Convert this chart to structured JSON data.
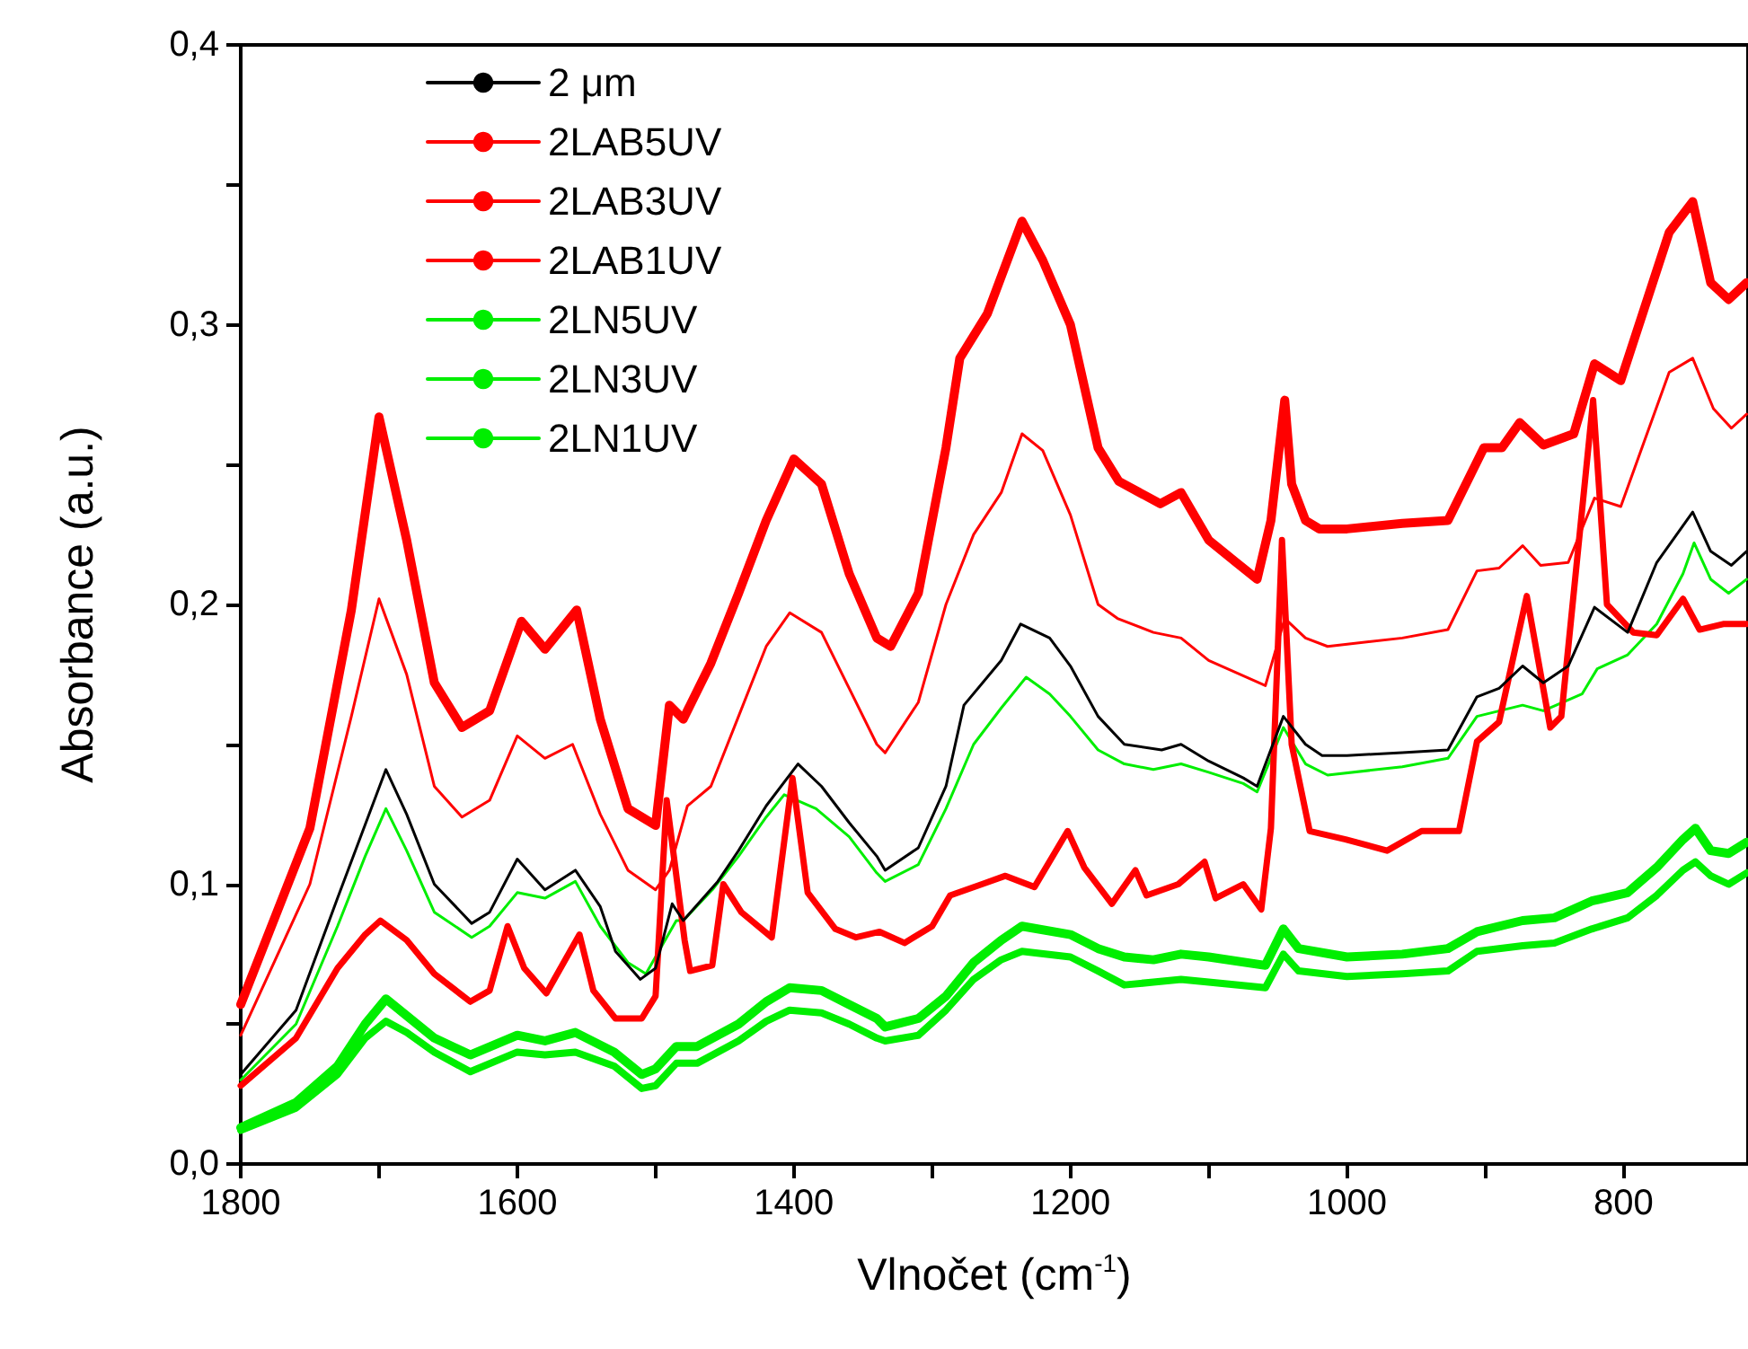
{
  "chart_data": {
    "type": "line",
    "xlabel": "Vlnočet (cm$^{-1}$)",
    "ylabel": "Absorbance (a.u.)",
    "xlim": [
      1800,
      710
    ],
    "ylim": [
      0,
      0.4
    ],
    "xticks": [
      1800,
      {
        "value": 1700,
        "label": null
      },
      1600,
      {
        "value": 1500,
        "label": null
      },
      1400,
      {
        "value": 1300,
        "label": null
      },
      1200,
      {
        "value": 1100,
        "label": null
      },
      1000,
      {
        "value": 900,
        "label": null
      },
      800
    ],
    "yticks": [
      {
        "value": 0,
        "label": "0,0"
      },
      {
        "value": 0.05,
        "label": null
      },
      {
        "value": 0.1,
        "label": "0,1"
      },
      {
        "value": 0.15,
        "label": null
      },
      {
        "value": 0.2,
        "label": "0,2"
      },
      {
        "value": 0.25,
        "label": null
      },
      {
        "value": 0.3,
        "label": "0,3"
      },
      {
        "value": 0.35,
        "label": null
      },
      {
        "value": 0.4,
        "label": "0,4"
      }
    ],
    "grid": false,
    "legend": "top left",
    "marker": "none",
    "line_style": "solid",
    "series": [
      {
        "name": "2 μm",
        "color": "#000000",
        "x": [
          1800,
          1760,
          1730,
          1695,
          1680,
          1660,
          1633,
          1620,
          1600,
          1580,
          1558,
          1540,
          1529,
          1511,
          1500,
          1488,
          1480,
          1455,
          1440,
          1420,
          1397,
          1380,
          1360,
          1340,
          1334,
          1310,
          1290,
          1277,
          1250,
          1236,
          1215,
          1200,
          1180,
          1161,
          1134,
          1120,
          1100,
          1075,
          1065,
          1046,
          1030,
          1018,
          1000,
          960,
          927,
          906,
          890,
          873,
          858,
          840,
          821,
          797,
          776,
          750,
          737,
          722,
          711
        ],
        "values": [
          0.032,
          0.055,
          0.095,
          0.141,
          0.125,
          0.1,
          0.086,
          0.09,
          0.109,
          0.098,
          0.105,
          0.092,
          0.076,
          0.066,
          0.07,
          0.093,
          0.087,
          0.101,
          0.112,
          0.128,
          0.143,
          0.135,
          0.122,
          0.11,
          0.105,
          0.113,
          0.135,
          0.164,
          0.18,
          0.193,
          0.188,
          0.178,
          0.16,
          0.15,
          0.148,
          0.15,
          0.144,
          0.138,
          0.135,
          0.16,
          0.15,
          0.146,
          0.146,
          0.147,
          0.148,
          0.167,
          0.17,
          0.178,
          0.172,
          0.178,
          0.199,
          0.19,
          0.215,
          0.233,
          0.219,
          0.214,
          0.219
        ]
      },
      {
        "name": "2LAB5UV",
        "color": "#ff0000",
        "x": [
          1800,
          1750,
          1720,
          1700,
          1680,
          1660,
          1640,
          1620,
          1597,
          1580,
          1557,
          1540,
          1520,
          1500,
          1490,
          1480,
          1460,
          1440,
          1420,
          1400,
          1380,
          1360,
          1340,
          1330,
          1310,
          1290,
          1280,
          1260,
          1235,
          1220,
          1200,
          1180,
          1165,
          1135,
          1120,
          1100,
          1080,
          1065,
          1055,
          1045,
          1040,
          1030,
          1020,
          1000,
          960,
          927,
          901,
          888,
          875,
          858,
          836,
          821,
          802,
          767,
          750,
          737,
          724,
          711
        ],
        "values": [
          0.057,
          0.12,
          0.198,
          0.267,
          0.223,
          0.172,
          0.156,
          0.162,
          0.194,
          0.184,
          0.198,
          0.159,
          0.127,
          0.121,
          0.164,
          0.159,
          0.179,
          0.204,
          0.23,
          0.252,
          0.243,
          0.211,
          0.188,
          0.185,
          0.204,
          0.256,
          0.288,
          0.304,
          0.337,
          0.323,
          0.3,
          0.256,
          0.244,
          0.236,
          0.24,
          0.223,
          0.215,
          0.209,
          0.23,
          0.273,
          0.243,
          0.23,
          0.227,
          0.227,
          0.229,
          0.23,
          0.256,
          0.256,
          0.265,
          0.257,
          0.261,
          0.286,
          0.28,
          0.333,
          0.344,
          0.315,
          0.309,
          0.315
        ]
      },
      {
        "name": "2LAB3UV",
        "color": "#ff0000",
        "x": [
          1800,
          1760,
          1730,
          1710,
          1699,
          1680,
          1660,
          1634,
          1620,
          1607,
          1595,
          1579,
          1555,
          1545,
          1529,
          1510,
          1500,
          1492,
          1479,
          1475,
          1459,
          1451,
          1438,
          1416,
          1401,
          1390,
          1370,
          1355,
          1338,
          1320,
          1300,
          1287,
          1264,
          1247,
          1226,
          1202,
          1190,
          1170,
          1153,
          1145,
          1122,
          1103,
          1095,
          1075,
          1062,
          1055,
          1047,
          1040,
          1027,
          1001,
          971,
          946,
          919,
          906,
          890,
          870,
          853,
          845,
          822,
          812,
          793,
          776,
          757,
          745,
          728,
          711
        ],
        "values": [
          0.028,
          0.045,
          0.07,
          0.082,
          0.087,
          0.08,
          0.068,
          0.058,
          0.062,
          0.085,
          0.07,
          0.061,
          0.082,
          0.062,
          0.052,
          0.052,
          0.06,
          0.13,
          0.08,
          0.069,
          0.071,
          0.1,
          0.09,
          0.081,
          0.138,
          0.097,
          0.084,
          0.081,
          0.083,
          0.079,
          0.085,
          0.096,
          0.1,
          0.103,
          0.099,
          0.119,
          0.106,
          0.093,
          0.105,
          0.096,
          0.1,
          0.108,
          0.095,
          0.1,
          0.091,
          0.12,
          0.223,
          0.15,
          0.119,
          0.116,
          0.112,
          0.119,
          0.119,
          0.151,
          0.158,
          0.203,
          0.156,
          0.16,
          0.273,
          0.2,
          0.19,
          0.189,
          0.202,
          0.191,
          0.193,
          0.193
        ]
      },
      {
        "name": "2LAB1UV",
        "color": "#ff0000",
        "x": [
          1800,
          1750,
          1720,
          1700,
          1680,
          1660,
          1640,
          1620,
          1600,
          1580,
          1560,
          1540,
          1520,
          1500,
          1490,
          1477,
          1460,
          1440,
          1420,
          1403,
          1380,
          1360,
          1340,
          1334,
          1310,
          1290,
          1270,
          1250,
          1235,
          1220,
          1200,
          1180,
          1166,
          1140,
          1120,
          1100,
          1059,
          1045,
          1030,
          1014,
          960,
          927,
          906,
          890,
          873,
          860,
          840,
          821,
          802,
          767,
          750,
          735,
          722,
          711
        ],
        "values": [
          0.046,
          0.1,
          0.16,
          0.202,
          0.175,
          0.135,
          0.124,
          0.13,
          0.153,
          0.145,
          0.15,
          0.125,
          0.105,
          0.098,
          0.105,
          0.128,
          0.135,
          0.16,
          0.185,
          0.197,
          0.19,
          0.17,
          0.15,
          0.147,
          0.165,
          0.2,
          0.225,
          0.24,
          0.261,
          0.255,
          0.232,
          0.2,
          0.195,
          0.19,
          0.188,
          0.18,
          0.171,
          0.195,
          0.188,
          0.185,
          0.188,
          0.191,
          0.212,
          0.213,
          0.221,
          0.214,
          0.215,
          0.238,
          0.235,
          0.283,
          0.288,
          0.27,
          0.263,
          0.268
        ]
      },
      {
        "name": "2LN5UV",
        "color": "#00ee00",
        "x": [
          1800,
          1760,
          1730,
          1710,
          1695,
          1680,
          1660,
          1634,
          1600,
          1580,
          1558,
          1530,
          1510,
          1500,
          1485,
          1470,
          1440,
          1420,
          1403,
          1380,
          1360,
          1340,
          1334,
          1310,
          1290,
          1270,
          1250,
          1235,
          1200,
          1180,
          1161,
          1140,
          1120,
          1100,
          1059,
          1046,
          1035,
          1000,
          960,
          927,
          906,
          873,
          850,
          823,
          797,
          776,
          757,
          748,
          737,
          724,
          711
        ],
        "values": [
          0.013,
          0.022,
          0.035,
          0.05,
          0.059,
          0.053,
          0.045,
          0.039,
          0.046,
          0.044,
          0.047,
          0.04,
          0.032,
          0.034,
          0.042,
          0.042,
          0.05,
          0.058,
          0.063,
          0.062,
          0.057,
          0.052,
          0.049,
          0.052,
          0.06,
          0.072,
          0.08,
          0.085,
          0.082,
          0.077,
          0.074,
          0.073,
          0.075,
          0.074,
          0.071,
          0.084,
          0.077,
          0.074,
          0.075,
          0.077,
          0.083,
          0.087,
          0.088,
          0.094,
          0.097,
          0.106,
          0.116,
          0.12,
          0.112,
          0.111,
          0.115
        ]
      },
      {
        "name": "2LN3UV",
        "color": "#00ee00",
        "x": [
          1800,
          1760,
          1730,
          1710,
          1695,
          1680,
          1660,
          1634,
          1600,
          1580,
          1558,
          1530,
          1510,
          1500,
          1485,
          1470,
          1440,
          1420,
          1403,
          1380,
          1360,
          1340,
          1334,
          1310,
          1290,
          1270,
          1250,
          1235,
          1200,
          1180,
          1161,
          1140,
          1120,
          1100,
          1059,
          1046,
          1035,
          1000,
          960,
          927,
          906,
          873,
          850,
          823,
          797,
          776,
          757,
          748,
          737,
          724,
          711
        ],
        "values": [
          0.012,
          0.02,
          0.032,
          0.045,
          0.051,
          0.047,
          0.04,
          0.033,
          0.04,
          0.039,
          0.04,
          0.035,
          0.027,
          0.028,
          0.036,
          0.036,
          0.044,
          0.051,
          0.055,
          0.054,
          0.05,
          0.045,
          0.044,
          0.046,
          0.055,
          0.066,
          0.073,
          0.076,
          0.074,
          0.069,
          0.064,
          0.065,
          0.066,
          0.065,
          0.063,
          0.075,
          0.069,
          0.067,
          0.068,
          0.069,
          0.076,
          0.078,
          0.079,
          0.084,
          0.088,
          0.096,
          0.105,
          0.108,
          0.103,
          0.1,
          0.104
        ]
      },
      {
        "name": "2LN1UV",
        "color": "#00ee00",
        "x": [
          1800,
          1760,
          1730,
          1710,
          1695,
          1680,
          1660,
          1633,
          1620,
          1600,
          1580,
          1558,
          1540,
          1520,
          1507,
          1485,
          1480,
          1459,
          1440,
          1420,
          1407,
          1384,
          1360,
          1340,
          1334,
          1310,
          1290,
          1270,
          1250,
          1232,
          1215,
          1200,
          1180,
          1161,
          1140,
          1120,
          1100,
          1075,
          1065,
          1046,
          1030,
          1014,
          960,
          927,
          906,
          873,
          858,
          830,
          819,
          797,
          776,
          757,
          749,
          737,
          724,
          711
        ],
        "values": [
          0.03,
          0.05,
          0.085,
          0.11,
          0.127,
          0.112,
          0.09,
          0.081,
          0.085,
          0.097,
          0.095,
          0.101,
          0.085,
          0.072,
          0.068,
          0.087,
          0.087,
          0.098,
          0.11,
          0.124,
          0.132,
          0.127,
          0.117,
          0.104,
          0.101,
          0.107,
          0.127,
          0.15,
          0.163,
          0.174,
          0.168,
          0.16,
          0.148,
          0.143,
          0.141,
          0.143,
          0.14,
          0.136,
          0.133,
          0.156,
          0.143,
          0.139,
          0.142,
          0.145,
          0.16,
          0.164,
          0.162,
          0.168,
          0.177,
          0.182,
          0.193,
          0.211,
          0.222,
          0.209,
          0.204,
          0.209
        ]
      }
    ]
  }
}
